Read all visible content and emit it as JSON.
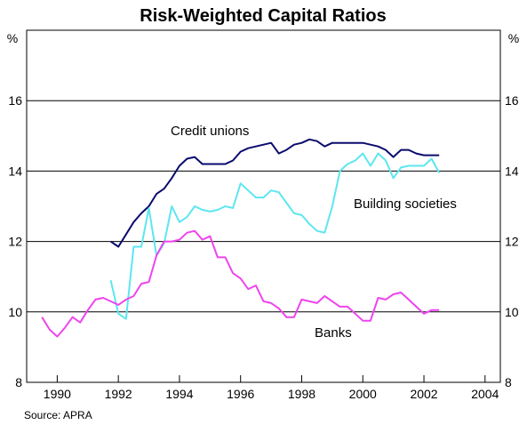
{
  "chart_data": {
    "type": "line",
    "title": "Risk-Weighted Capital Ratios",
    "y_unit_left": "%",
    "y_unit_right": "%",
    "xlim": [
      1989,
      2004.5
    ],
    "ylim": [
      8,
      18
    ],
    "x_ticks": [
      1990,
      1992,
      1994,
      1996,
      1998,
      2000,
      2002,
      2004
    ],
    "y_ticks": [
      8,
      10,
      12,
      14,
      16
    ],
    "grid": "horizontal",
    "source": "Source: APRA",
    "series": [
      {
        "name": "Credit unions",
        "color": "#0a0a6e",
        "x": [
          1991.75,
          1992.0,
          1992.25,
          1992.5,
          1992.75,
          1993.0,
          1993.25,
          1993.5,
          1993.75,
          1994.0,
          1994.25,
          1994.5,
          1994.75,
          1995.0,
          1995.25,
          1995.5,
          1995.75,
          1996.0,
          1996.25,
          1996.5,
          1996.75,
          1997.0,
          1997.25,
          1997.5,
          1997.75,
          1998.0,
          1998.25,
          1998.5,
          1998.75,
          1999.0,
          1999.25,
          1999.5,
          1999.75,
          2000.0,
          2000.25,
          2000.5,
          2000.75,
          2001.0,
          2001.25,
          2001.5,
          2001.75,
          2002.0,
          2002.25,
          2002.5
        ],
        "values": [
          12.0,
          11.85,
          12.2,
          12.55,
          12.8,
          13.0,
          13.35,
          13.5,
          13.8,
          14.15,
          14.35,
          14.4,
          14.2,
          14.2,
          14.2,
          14.2,
          14.3,
          14.55,
          14.65,
          14.7,
          14.75,
          14.8,
          14.5,
          14.6,
          14.75,
          14.8,
          14.9,
          14.85,
          14.7,
          14.8,
          14.8,
          14.8,
          14.8,
          14.8,
          14.75,
          14.7,
          14.6,
          14.4,
          14.6,
          14.6,
          14.5,
          14.45,
          14.45,
          14.45
        ]
      },
      {
        "name": "Building societies",
        "color": "#5ce6f0",
        "x": [
          1991.75,
          1992.0,
          1992.25,
          1992.5,
          1992.75,
          1993.0,
          1993.25,
          1993.5,
          1993.75,
          1994.0,
          1994.25,
          1994.5,
          1994.75,
          1995.0,
          1995.25,
          1995.5,
          1995.75,
          1996.0,
          1996.25,
          1996.5,
          1996.75,
          1997.0,
          1997.25,
          1997.5,
          1997.75,
          1998.0,
          1998.25,
          1998.5,
          1998.75,
          1999.0,
          1999.25,
          1999.5,
          1999.75,
          2000.0,
          2000.25,
          2000.5,
          2000.75,
          2001.0,
          2001.25,
          2001.5,
          2001.75,
          2002.0,
          2002.25,
          2002.5
        ],
        "values": [
          10.9,
          9.95,
          9.8,
          11.85,
          11.85,
          12.95,
          11.6,
          11.95,
          13.0,
          12.55,
          12.7,
          13.0,
          12.9,
          12.85,
          12.9,
          13.0,
          12.95,
          13.65,
          13.45,
          13.25,
          13.25,
          13.45,
          13.4,
          13.1,
          12.8,
          12.75,
          12.5,
          12.3,
          12.25,
          13.0,
          14.0,
          14.2,
          14.3,
          14.5,
          14.15,
          14.5,
          14.3,
          13.8,
          14.1,
          14.15,
          14.15,
          14.15,
          14.35,
          13.95
        ]
      },
      {
        "name": "Banks",
        "color": "#ee44ee",
        "x": [
          1989.5,
          1989.75,
          1990.0,
          1990.25,
          1990.5,
          1990.75,
          1991.0,
          1991.25,
          1991.5,
          1991.75,
          1992.0,
          1992.25,
          1992.5,
          1992.75,
          1993.0,
          1993.25,
          1993.5,
          1993.75,
          1994.0,
          1994.25,
          1994.5,
          1994.75,
          1995.0,
          1995.25,
          1995.5,
          1995.75,
          1996.0,
          1996.25,
          1996.5,
          1996.75,
          1997.0,
          1997.25,
          1997.5,
          1997.75,
          1998.0,
          1998.25,
          1998.5,
          1998.75,
          1999.0,
          1999.25,
          1999.5,
          1999.75,
          2000.0,
          2000.25,
          2000.5,
          2000.75,
          2001.0,
          2001.25,
          2001.5,
          2001.75,
          2002.0,
          2002.25,
          2002.5
        ],
        "values": [
          9.85,
          9.5,
          9.3,
          9.55,
          9.85,
          9.7,
          10.05,
          10.35,
          10.4,
          10.3,
          10.2,
          10.35,
          10.45,
          10.8,
          10.85,
          11.6,
          12.0,
          12.0,
          12.05,
          12.25,
          12.3,
          12.05,
          12.15,
          11.55,
          11.55,
          11.1,
          10.95,
          10.65,
          10.75,
          10.3,
          10.25,
          10.1,
          9.85,
          9.85,
          10.35,
          10.3,
          10.25,
          10.45,
          10.3,
          10.15,
          10.15,
          9.95,
          9.75,
          9.75,
          10.4,
          10.35,
          10.5,
          10.55,
          10.35,
          10.15,
          9.95,
          10.05,
          10.05
        ]
      }
    ],
    "annotations": [
      {
        "text": "Credit unions",
        "series": 0
      },
      {
        "text": "Building societies",
        "series": 1
      },
      {
        "text": "Banks",
        "series": 2
      }
    ]
  }
}
